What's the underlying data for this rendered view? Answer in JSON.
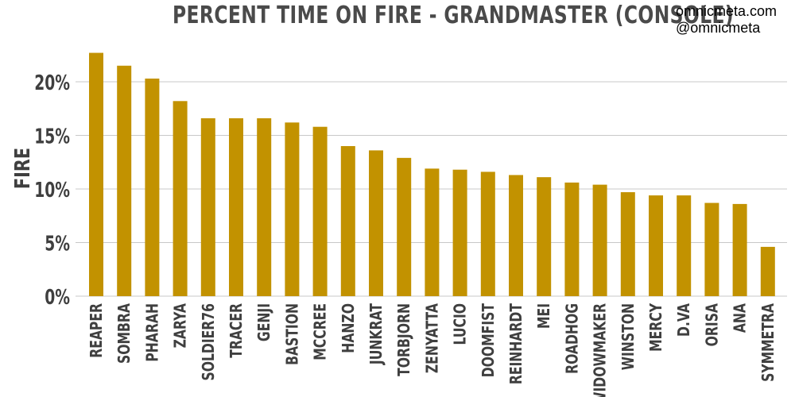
{
  "title": "PERCENT TIME ON FIRE - GRANDMASTER (CONSOLE)",
  "credit": {
    "site": "omnicmeta.com",
    "handle": "@omnicmeta"
  },
  "colors": {
    "bar": "#c29200",
    "grid": "#c8c8c8",
    "text": "#3f3f3f"
  },
  "chart_data": {
    "type": "bar",
    "title": "PERCENT TIME ON FIRE - GRANDMASTER (CONSOLE)",
    "xlabel": "",
    "ylabel": "FIRE",
    "ylim": [
      0,
      24
    ],
    "yticks": [
      0,
      5,
      10,
      15,
      20
    ],
    "ytick_labels": [
      "0%",
      "5%",
      "10%",
      "15%",
      "20%"
    ],
    "grid": true,
    "categories": [
      "REAPER",
      "SOMBRA",
      "PHARAH",
      "ZARYA",
      "SOLDIER76",
      "TRACER",
      "GENJI",
      "BASTION",
      "MCCREE",
      "HANZO",
      "JUNKRAT",
      "TORBJORN",
      "ZENYATTA",
      "LUCIO",
      "DOOMFIST",
      "REINHARDT",
      "MEI",
      "ROADHOG",
      "WIDOWMAKER",
      "WINSTON",
      "MERCY",
      "D.VA",
      "ORISA",
      "ANA",
      "SYMMETRA"
    ],
    "values": [
      22.7,
      21.5,
      20.3,
      18.2,
      16.6,
      16.6,
      16.6,
      16.2,
      15.8,
      14.0,
      13.6,
      12.9,
      11.9,
      11.8,
      11.6,
      11.3,
      11.1,
      10.6,
      10.4,
      9.7,
      9.4,
      9.4,
      8.7,
      8.6,
      4.6
    ]
  }
}
